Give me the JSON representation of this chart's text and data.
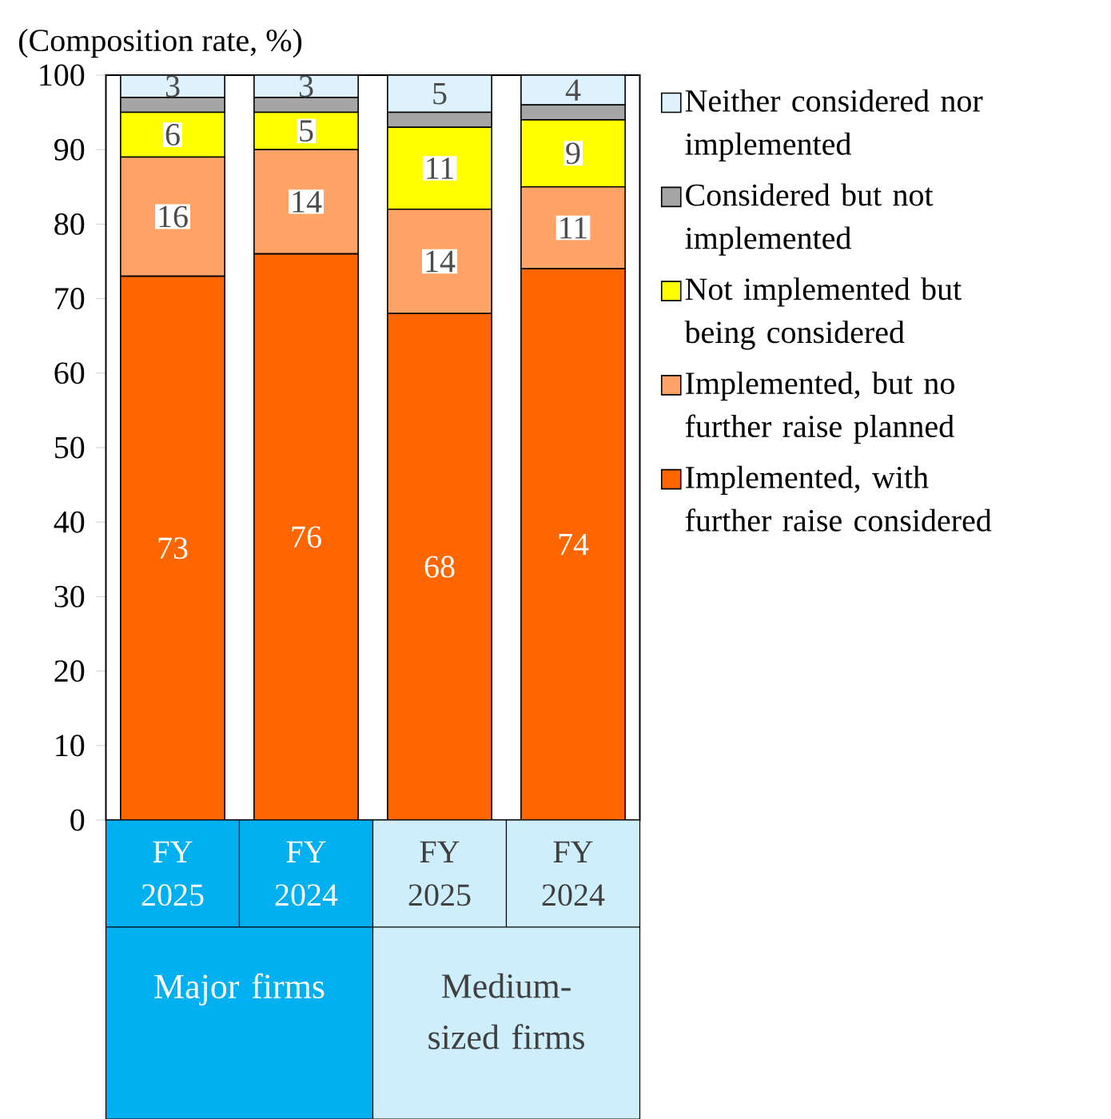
{
  "chart_data": {
    "type": "bar",
    "stacked": true,
    "ylabel": "(Composition rate, %)",
    "categories": [
      "FY 2025",
      "FY 2024",
      "FY 2025",
      "FY 2024"
    ],
    "annotations": [
      "Major firms",
      "Medium-sized firms"
    ],
    "series": [
      {
        "name": "Implemented, with further raise considered",
        "color": "#ff6600",
        "values": [
          73,
          76,
          68,
          74
        ],
        "value_labels": [
          "73",
          "76",
          "68",
          "74"
        ]
      },
      {
        "name": "Implemented, but no further raise planned",
        "color": "#ffa366",
        "values": [
          16,
          14,
          14,
          11
        ],
        "value_labels": [
          "16",
          "14",
          "14",
          "11"
        ]
      },
      {
        "name": "Not implemented but being considered",
        "color": "#ffff00",
        "values": [
          6,
          5,
          11,
          9
        ],
        "value_labels": [
          "6",
          "5",
          "11",
          "9"
        ]
      },
      {
        "name": "Considered but not implemented",
        "color": "#a6a6a6",
        "values": [
          2,
          2,
          2,
          2
        ],
        "value_labels": [
          null,
          null,
          null,
          null
        ]
      },
      {
        "name": "Neither considered nor implemented",
        "color": "#ddf2fc",
        "values": [
          3,
          3,
          5,
          4
        ],
        "value_labels": [
          "3",
          "3",
          "5",
          "4"
        ]
      }
    ],
    "ylim": [
      0,
      100
    ],
    "yticks": [
      0,
      10,
      20,
      30,
      40,
      50,
      60,
      70,
      80,
      90,
      100
    ],
    "legend": "right",
    "grid": false
  }
}
